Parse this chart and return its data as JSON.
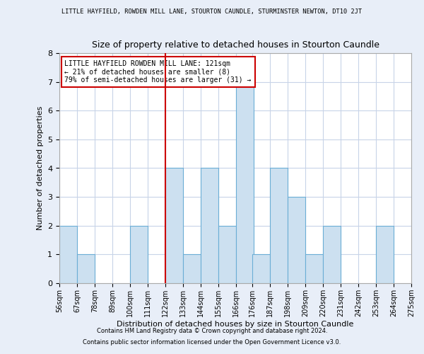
{
  "title": "Size of property relative to detached houses in Stourton Caundle",
  "suptitle": "LITTLE HAYFIELD, ROWDEN MILL LANE, STOURTON CAUNDLE, STURMINSTER NEWTON, DT10 2JT",
  "xlabel": "Distribution of detached houses by size in Stourton Caundle",
  "ylabel": "Number of detached properties",
  "bin_edges": [
    56,
    67,
    78,
    89,
    100,
    111,
    122,
    133,
    144,
    155,
    166,
    176,
    187,
    198,
    209,
    220,
    231,
    242,
    253,
    264,
    275
  ],
  "counts": [
    2,
    1,
    0,
    0,
    2,
    0,
    4,
    1,
    4,
    2,
    7,
    1,
    4,
    3,
    1,
    2,
    0,
    0,
    2,
    0
  ],
  "bar_color": "#cce0f0",
  "bar_edge_color": "#6baed6",
  "property_line_x": 122,
  "annotation_title": "LITTLE HAYFIELD ROWDEN MILL LANE: 121sqm",
  "annotation_line1": "← 21% of detached houses are smaller (8)",
  "annotation_line2": "79% of semi-detached houses are larger (31) →",
  "annotation_box_color": "#ffffff",
  "annotation_box_edge_color": "#cc0000",
  "property_line_color": "#cc0000",
  "ylim": [
    0,
    8
  ],
  "yticks": [
    0,
    1,
    2,
    3,
    4,
    5,
    6,
    7,
    8
  ],
  "footnote1": "Contains HM Land Registry data © Crown copyright and database right 2024.",
  "footnote2": "Contains public sector information licensed under the Open Government Licence v3.0.",
  "bg_color": "#e8eef8",
  "plot_bg_color": "#ffffff",
  "grid_color": "#c8d4e8"
}
